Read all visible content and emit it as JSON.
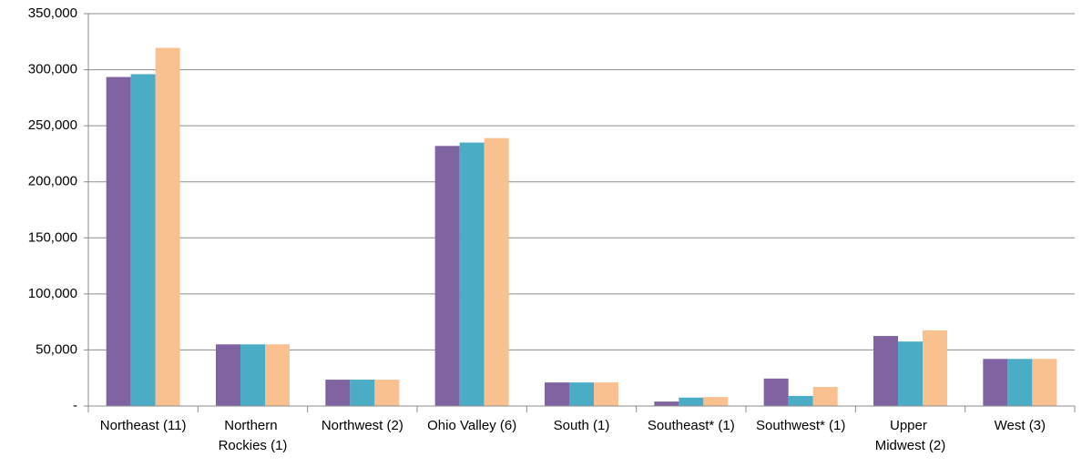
{
  "chart_data": {
    "type": "bar",
    "categories": [
      "Northeast (11)",
      "Northern Rockies (1)",
      "Northwest (2)",
      "Ohio Valley (6)",
      "South (1)",
      "Southeast* (1)",
      "Southwest* (1)",
      "Upper Midwest (2)",
      "West (3)"
    ],
    "series": [
      {
        "color": "#8064a2",
        "values": [
          293500,
          55000,
          23500,
          232000,
          21000,
          4000,
          24500,
          62500,
          42000
        ]
      },
      {
        "color": "#4bacc6",
        "values": [
          296000,
          55000,
          23500,
          235000,
          21000,
          7500,
          9000,
          57500,
          42000
        ]
      },
      {
        "color": "#f9c090",
        "values": [
          319500,
          55000,
          23500,
          239000,
          21000,
          8000,
          17000,
          67500,
          42000
        ]
      }
    ],
    "ylim": [
      0,
      350000
    ],
    "yticks": [
      {
        "value": 0,
        "label": "-"
      },
      {
        "value": 50000,
        "label": "50,000"
      },
      {
        "value": 100000,
        "label": "100,000"
      },
      {
        "value": 150000,
        "label": "150,000"
      },
      {
        "value": 200000,
        "label": "200,000"
      },
      {
        "value": 250000,
        "label": "250,000"
      },
      {
        "value": 300000,
        "label": "300,000"
      },
      {
        "value": 350000,
        "label": "350,000"
      }
    ],
    "grid": true
  }
}
